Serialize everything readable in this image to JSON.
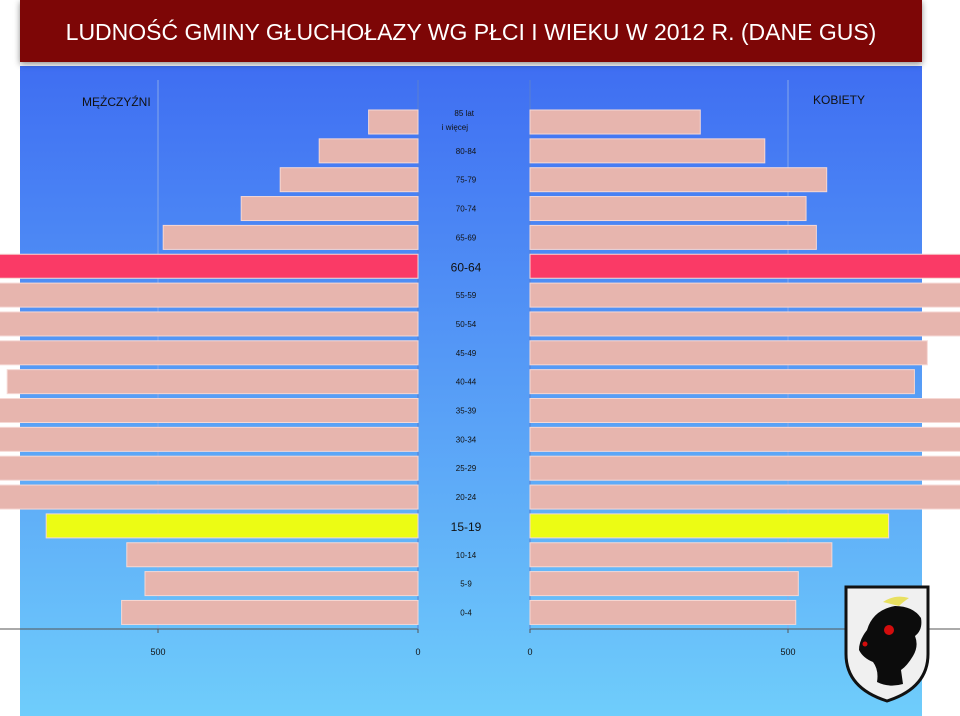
{
  "title": "LUDNOŚĆ GMINY GŁUCHOŁAZY WG PŁCI I WIEKU W 2012 R. (DANE GUS)",
  "colors": {
    "bg_top": "#3f6ef2",
    "bg_bottom": "#6fcdfb",
    "title_bg": "#7d0606",
    "bar_default": "#e7b5ae",
    "bar_highlight_60_64": "#fa3a66",
    "bar_highlight_15_19": "#ecfc14",
    "crest_bg": "#f0f0f0",
    "crest_red": "#d30c0c"
  },
  "chart_data": {
    "type": "bar",
    "orientation": "horizontal",
    "subtype": "population-pyramid",
    "title": "LUDNOŚĆ GMINY GŁUCHOŁAZY WG PŁCI I WIEKU W 2012 R. (DANE GUS)",
    "grid": true,
    "highlighted_categories": [
      "60-64",
      "15-19"
    ],
    "categories": [
      "85 lat i więcej",
      "80-84",
      "75-79",
      "70-74",
      "65-69",
      "60-64",
      "55-59",
      "50-54",
      "45-49",
      "40-44",
      "35-39",
      "30-34",
      "25-29",
      "20-24",
      "15-19",
      "10-14",
      "5-9",
      "0-4"
    ],
    "category_lines": [
      [
        "85 lat",
        "i więcej"
      ],
      [
        "80-84"
      ],
      [
        "75-79"
      ],
      [
        "70-74"
      ],
      [
        "65-69"
      ],
      [
        "60-64"
      ],
      [
        "55-59"
      ],
      [
        "50-54"
      ],
      [
        "45-49"
      ],
      [
        "40-44"
      ],
      [
        "35-39"
      ],
      [
        "30-34"
      ],
      [
        "25-29"
      ],
      [
        "20-24"
      ],
      [
        "15-19"
      ],
      [
        "10-14"
      ],
      [
        "5-9"
      ],
      [
        "0-4"
      ]
    ],
    "series": [
      {
        "name": "MĘŻCZYŹNI",
        "side": "left",
        "values": [
          95,
          190,
          265,
          340,
          490,
          855,
          980,
          990,
          820,
          790,
          930,
          1030,
          1030,
          975,
          715,
          560,
          525,
          570
        ]
      },
      {
        "name": "KOBIETY",
        "side": "right",
        "values": [
          330,
          455,
          575,
          535,
          555,
          1000,
          1045,
          955,
          770,
          745,
          865,
          955,
          955,
          870,
          695,
          585,
          520,
          515
        ]
      }
    ],
    "xlim_left": [
      0,
      1000
    ],
    "xlim_right": [
      0,
      1500
    ],
    "xticks_left": [
      1000,
      500,
      0
    ],
    "xticks_right": [
      0,
      500,
      1000,
      1500
    ]
  }
}
